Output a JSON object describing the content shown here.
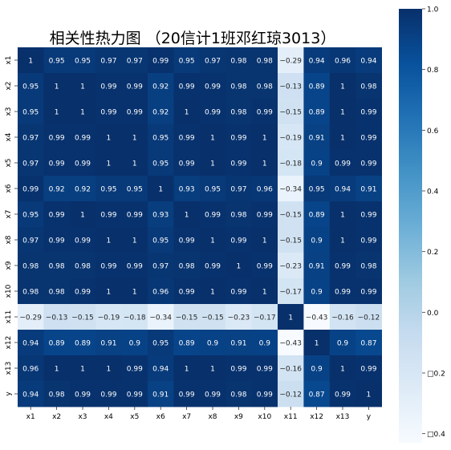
{
  "chart_data": {
    "type": "heatmap",
    "title": "相关性热力图 （20信计1班邓红琼3013）",
    "xlabel": "",
    "ylabel": "",
    "x_labels": [
      "x1",
      "x2",
      "x3",
      "x4",
      "x5",
      "x6",
      "x7",
      "x8",
      "x9",
      "x10",
      "x11",
      "x12",
      "x13",
      "y"
    ],
    "y_labels": [
      "x1",
      "x2",
      "x3",
      "x4",
      "x5",
      "x6",
      "x7",
      "x8",
      "x9",
      "x10",
      "x11",
      "x12",
      "x13",
      "y"
    ],
    "values": [
      [
        1,
        0.95,
        0.95,
        0.97,
        0.97,
        0.99,
        0.95,
        0.97,
        0.98,
        0.98,
        -0.29,
        0.94,
        0.96,
        0.94
      ],
      [
        0.95,
        1,
        1,
        0.99,
        0.99,
        0.92,
        0.99,
        0.99,
        0.98,
        0.98,
        -0.13,
        0.89,
        1,
        0.98
      ],
      [
        0.95,
        1,
        1,
        0.99,
        0.99,
        0.92,
        1,
        0.99,
        0.98,
        0.99,
        -0.15,
        0.89,
        1,
        0.99
      ],
      [
        0.97,
        0.99,
        0.99,
        1,
        1,
        0.95,
        0.99,
        1,
        0.99,
        1,
        -0.19,
        0.91,
        1,
        0.99
      ],
      [
        0.97,
        0.99,
        0.99,
        1,
        1,
        0.95,
        0.99,
        1,
        0.99,
        1,
        -0.18,
        0.9,
        0.99,
        0.99
      ],
      [
        0.99,
        0.92,
        0.92,
        0.95,
        0.95,
        1,
        0.93,
        0.95,
        0.97,
        0.96,
        -0.34,
        0.95,
        0.94,
        0.91
      ],
      [
        0.95,
        0.99,
        1,
        0.99,
        0.99,
        0.93,
        1,
        0.99,
        0.98,
        0.99,
        -0.15,
        0.89,
        1,
        0.99
      ],
      [
        0.97,
        0.99,
        0.99,
        1,
        1,
        0.95,
        0.99,
        1,
        0.99,
        1,
        -0.15,
        0.9,
        1,
        0.99
      ],
      [
        0.98,
        0.98,
        0.98,
        0.99,
        0.99,
        0.97,
        0.98,
        0.99,
        1,
        0.99,
        -0.23,
        0.91,
        0.99,
        0.98
      ],
      [
        0.98,
        0.98,
        0.99,
        1,
        1,
        0.96,
        0.99,
        1,
        0.99,
        1,
        -0.17,
        0.9,
        0.99,
        0.99
      ],
      [
        -0.29,
        -0.13,
        -0.15,
        -0.19,
        -0.18,
        -0.34,
        -0.15,
        -0.15,
        -0.23,
        -0.17,
        1,
        -0.43,
        -0.16,
        -0.12
      ],
      [
        0.94,
        0.89,
        0.89,
        0.91,
        0.9,
        0.95,
        0.89,
        0.9,
        0.91,
        0.9,
        -0.43,
        1,
        0.9,
        0.87
      ],
      [
        0.96,
        1,
        1,
        1,
        0.99,
        0.94,
        1,
        1,
        0.99,
        0.99,
        -0.16,
        0.9,
        1,
        0.99
      ],
      [
        0.94,
        0.98,
        0.99,
        0.99,
        0.99,
        0.91,
        0.99,
        0.99,
        0.98,
        0.99,
        -0.12,
        0.87,
        0.99,
        1
      ]
    ],
    "value_display": [
      [
        "1",
        "0.95",
        "0.95",
        "0.97",
        "0.97",
        "0.99",
        "0.95",
        "0.97",
        "0.98",
        "0.98",
        "−0.29",
        "0.94",
        "0.96",
        "0.94"
      ],
      [
        "0.95",
        "1",
        "1",
        "0.99",
        "0.99",
        "0.92",
        "0.99",
        "0.99",
        "0.98",
        "0.98",
        "−0.13",
        "0.89",
        "1",
        "0.98"
      ],
      [
        "0.95",
        "1",
        "1",
        "0.99",
        "0.99",
        "0.92",
        "1",
        "0.99",
        "0.98",
        "0.99",
        "−0.15",
        "0.89",
        "1",
        "0.99"
      ],
      [
        "0.97",
        "0.99",
        "0.99",
        "1",
        "1",
        "0.95",
        "0.99",
        "1",
        "0.99",
        "1",
        "−0.19",
        "0.91",
        "1",
        "0.99"
      ],
      [
        "0.97",
        "0.99",
        "0.99",
        "1",
        "1",
        "0.95",
        "0.99",
        "1",
        "0.99",
        "1",
        "−0.18",
        "0.9",
        "0.99",
        "0.99"
      ],
      [
        "0.99",
        "0.92",
        "0.92",
        "0.95",
        "0.95",
        "1",
        "0.93",
        "0.95",
        "0.97",
        "0.96",
        "−0.34",
        "0.95",
        "0.94",
        "0.91"
      ],
      [
        "0.95",
        "0.99",
        "1",
        "0.99",
        "0.99",
        "0.93",
        "1",
        "0.99",
        "0.98",
        "0.99",
        "−0.15",
        "0.89",
        "1",
        "0.99"
      ],
      [
        "0.97",
        "0.99",
        "0.99",
        "1",
        "1",
        "0.95",
        "0.99",
        "1",
        "0.99",
        "1",
        "−0.15",
        "0.9",
        "1",
        "0.99"
      ],
      [
        "0.98",
        "0.98",
        "0.98",
        "0.99",
        "0.99",
        "0.97",
        "0.98",
        "0.99",
        "1",
        "0.99",
        "−0.23",
        "0.91",
        "0.99",
        "0.98"
      ],
      [
        "0.98",
        "0.98",
        "0.99",
        "1",
        "1",
        "0.96",
        "0.99",
        "1",
        "0.99",
        "1",
        "−0.17",
        "0.9",
        "0.99",
        "0.99"
      ],
      [
        "−0.29",
        "−0.13",
        "−0.15",
        "−0.19",
        "−0.18",
        "−0.34",
        "−0.15",
        "−0.15",
        "−0.23",
        "−0.17",
        "1",
        "−0.43",
        "−0.16",
        "−0.12"
      ],
      [
        "0.94",
        "0.89",
        "0.89",
        "0.91",
        "0.9",
        "0.95",
        "0.89",
        "0.9",
        "0.91",
        "0.9",
        "−0.43",
        "1",
        "0.9",
        "0.87"
      ],
      [
        "0.96",
        "1",
        "1",
        "1",
        "0.99",
        "0.94",
        "1",
        "1",
        "0.99",
        "0.99",
        "−0.16",
        "0.9",
        "1",
        "0.99"
      ],
      [
        "0.94",
        "0.98",
        "0.99",
        "0.99",
        "0.99",
        "0.91",
        "0.99",
        "0.99",
        "0.98",
        "0.99",
        "−0.12",
        "0.87",
        "0.99",
        "1"
      ]
    ],
    "colormap": "Blues",
    "colormap_stops": [
      "#f7fbff",
      "#deebf7",
      "#c6dbef",
      "#9ecae1",
      "#6baed6",
      "#4292c6",
      "#2171b5",
      "#08519c",
      "#08306b"
    ],
    "vmin": -0.43,
    "vmax": 1,
    "colorbar_ticks": [
      1.0,
      0.8,
      0.6,
      0.4,
      0.2,
      0.0,
      -0.2,
      -0.4
    ],
    "colorbar_tick_labels": [
      "1.0",
      "0.8",
      "0.6",
      "0.4",
      "0.2",
      "0.0",
      "□0.2",
      "□0.4"
    ],
    "grid": false
  }
}
